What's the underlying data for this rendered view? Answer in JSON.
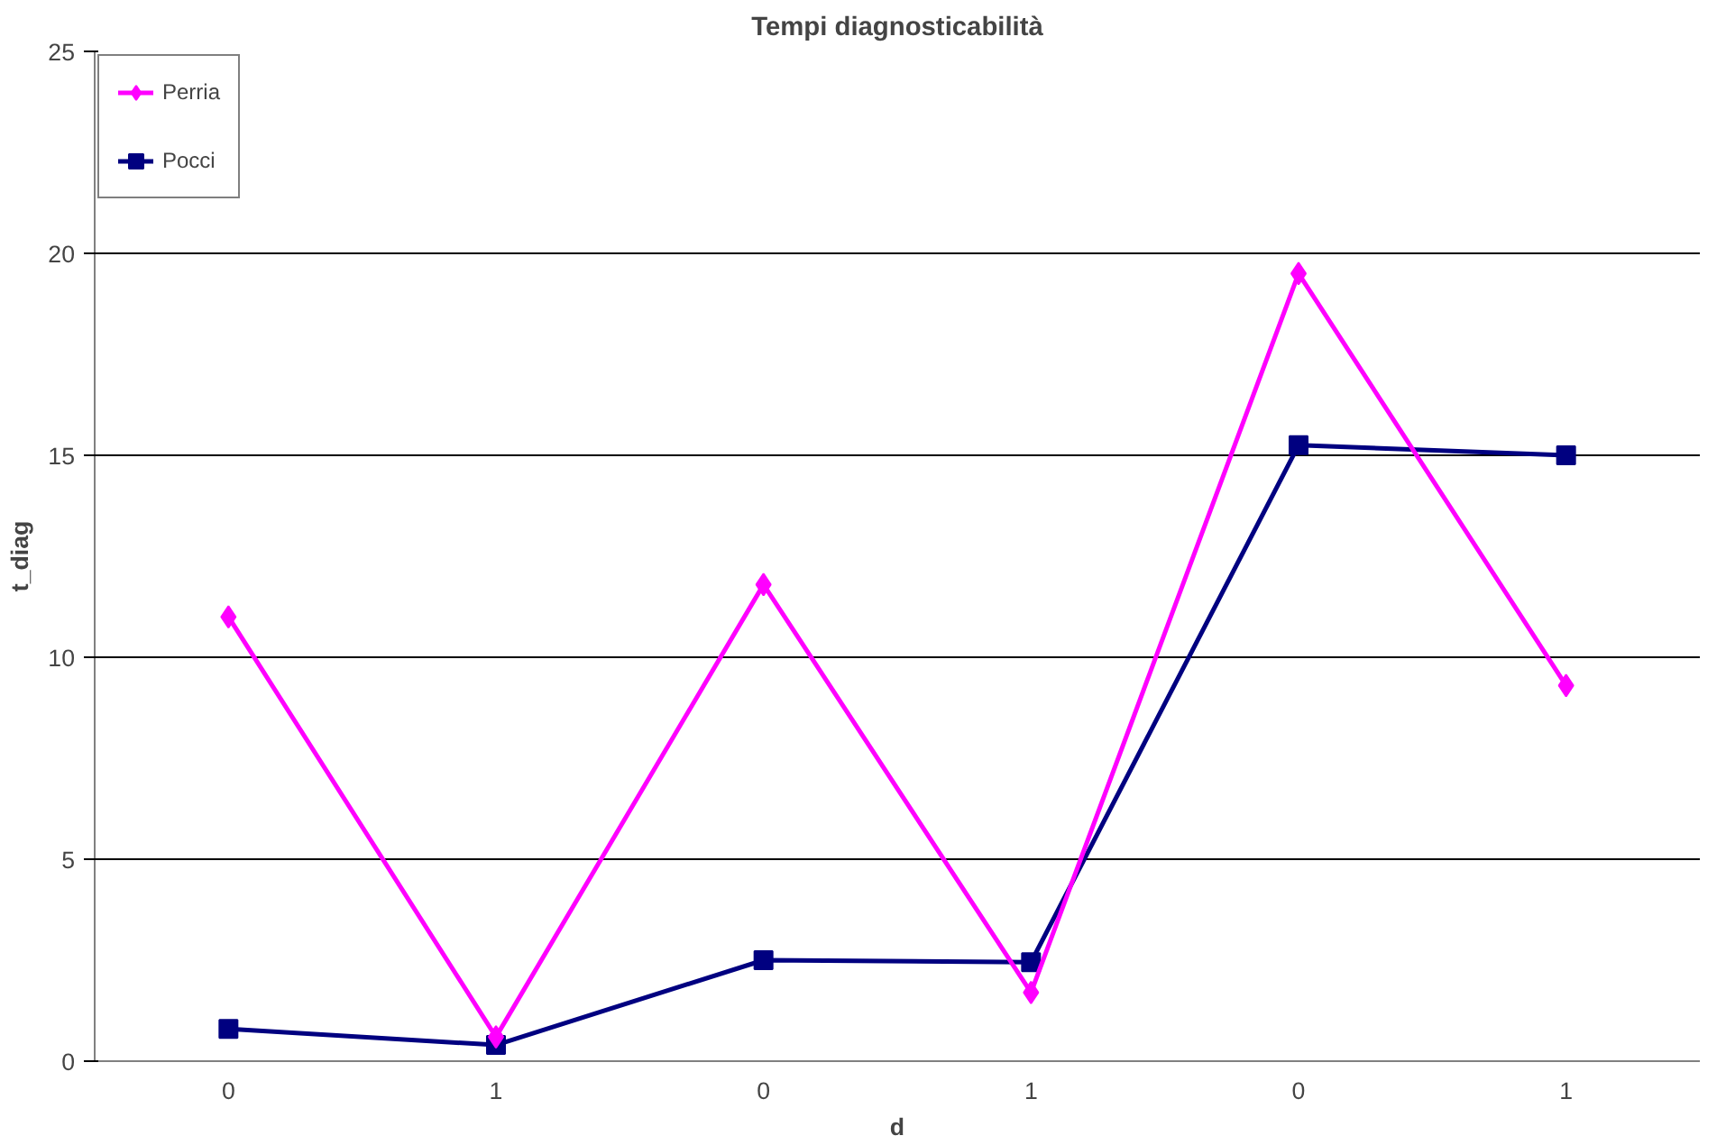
{
  "chart_data": {
    "type": "line",
    "title": "Tempi diagnosticabilità",
    "xlabel": "d",
    "ylabel": "t_diag",
    "categories": [
      "0",
      "1",
      "0",
      "1",
      "0",
      "1"
    ],
    "series": [
      {
        "name": "Perria",
        "color": "#ff00ff",
        "marker": "diamond",
        "values": [
          11.0,
          0.6,
          11.8,
          1.7,
          19.5,
          9.3
        ]
      },
      {
        "name": "Pocci",
        "color": "#000080",
        "marker": "square",
        "values": [
          0.8,
          0.4,
          2.5,
          2.45,
          15.25,
          15.0
        ]
      }
    ],
    "ylim": [
      0,
      25
    ],
    "yticks": [
      0,
      5,
      10,
      15,
      20,
      25
    ],
    "grid": "y",
    "legend": "top left",
    "line_style": "solid"
  }
}
